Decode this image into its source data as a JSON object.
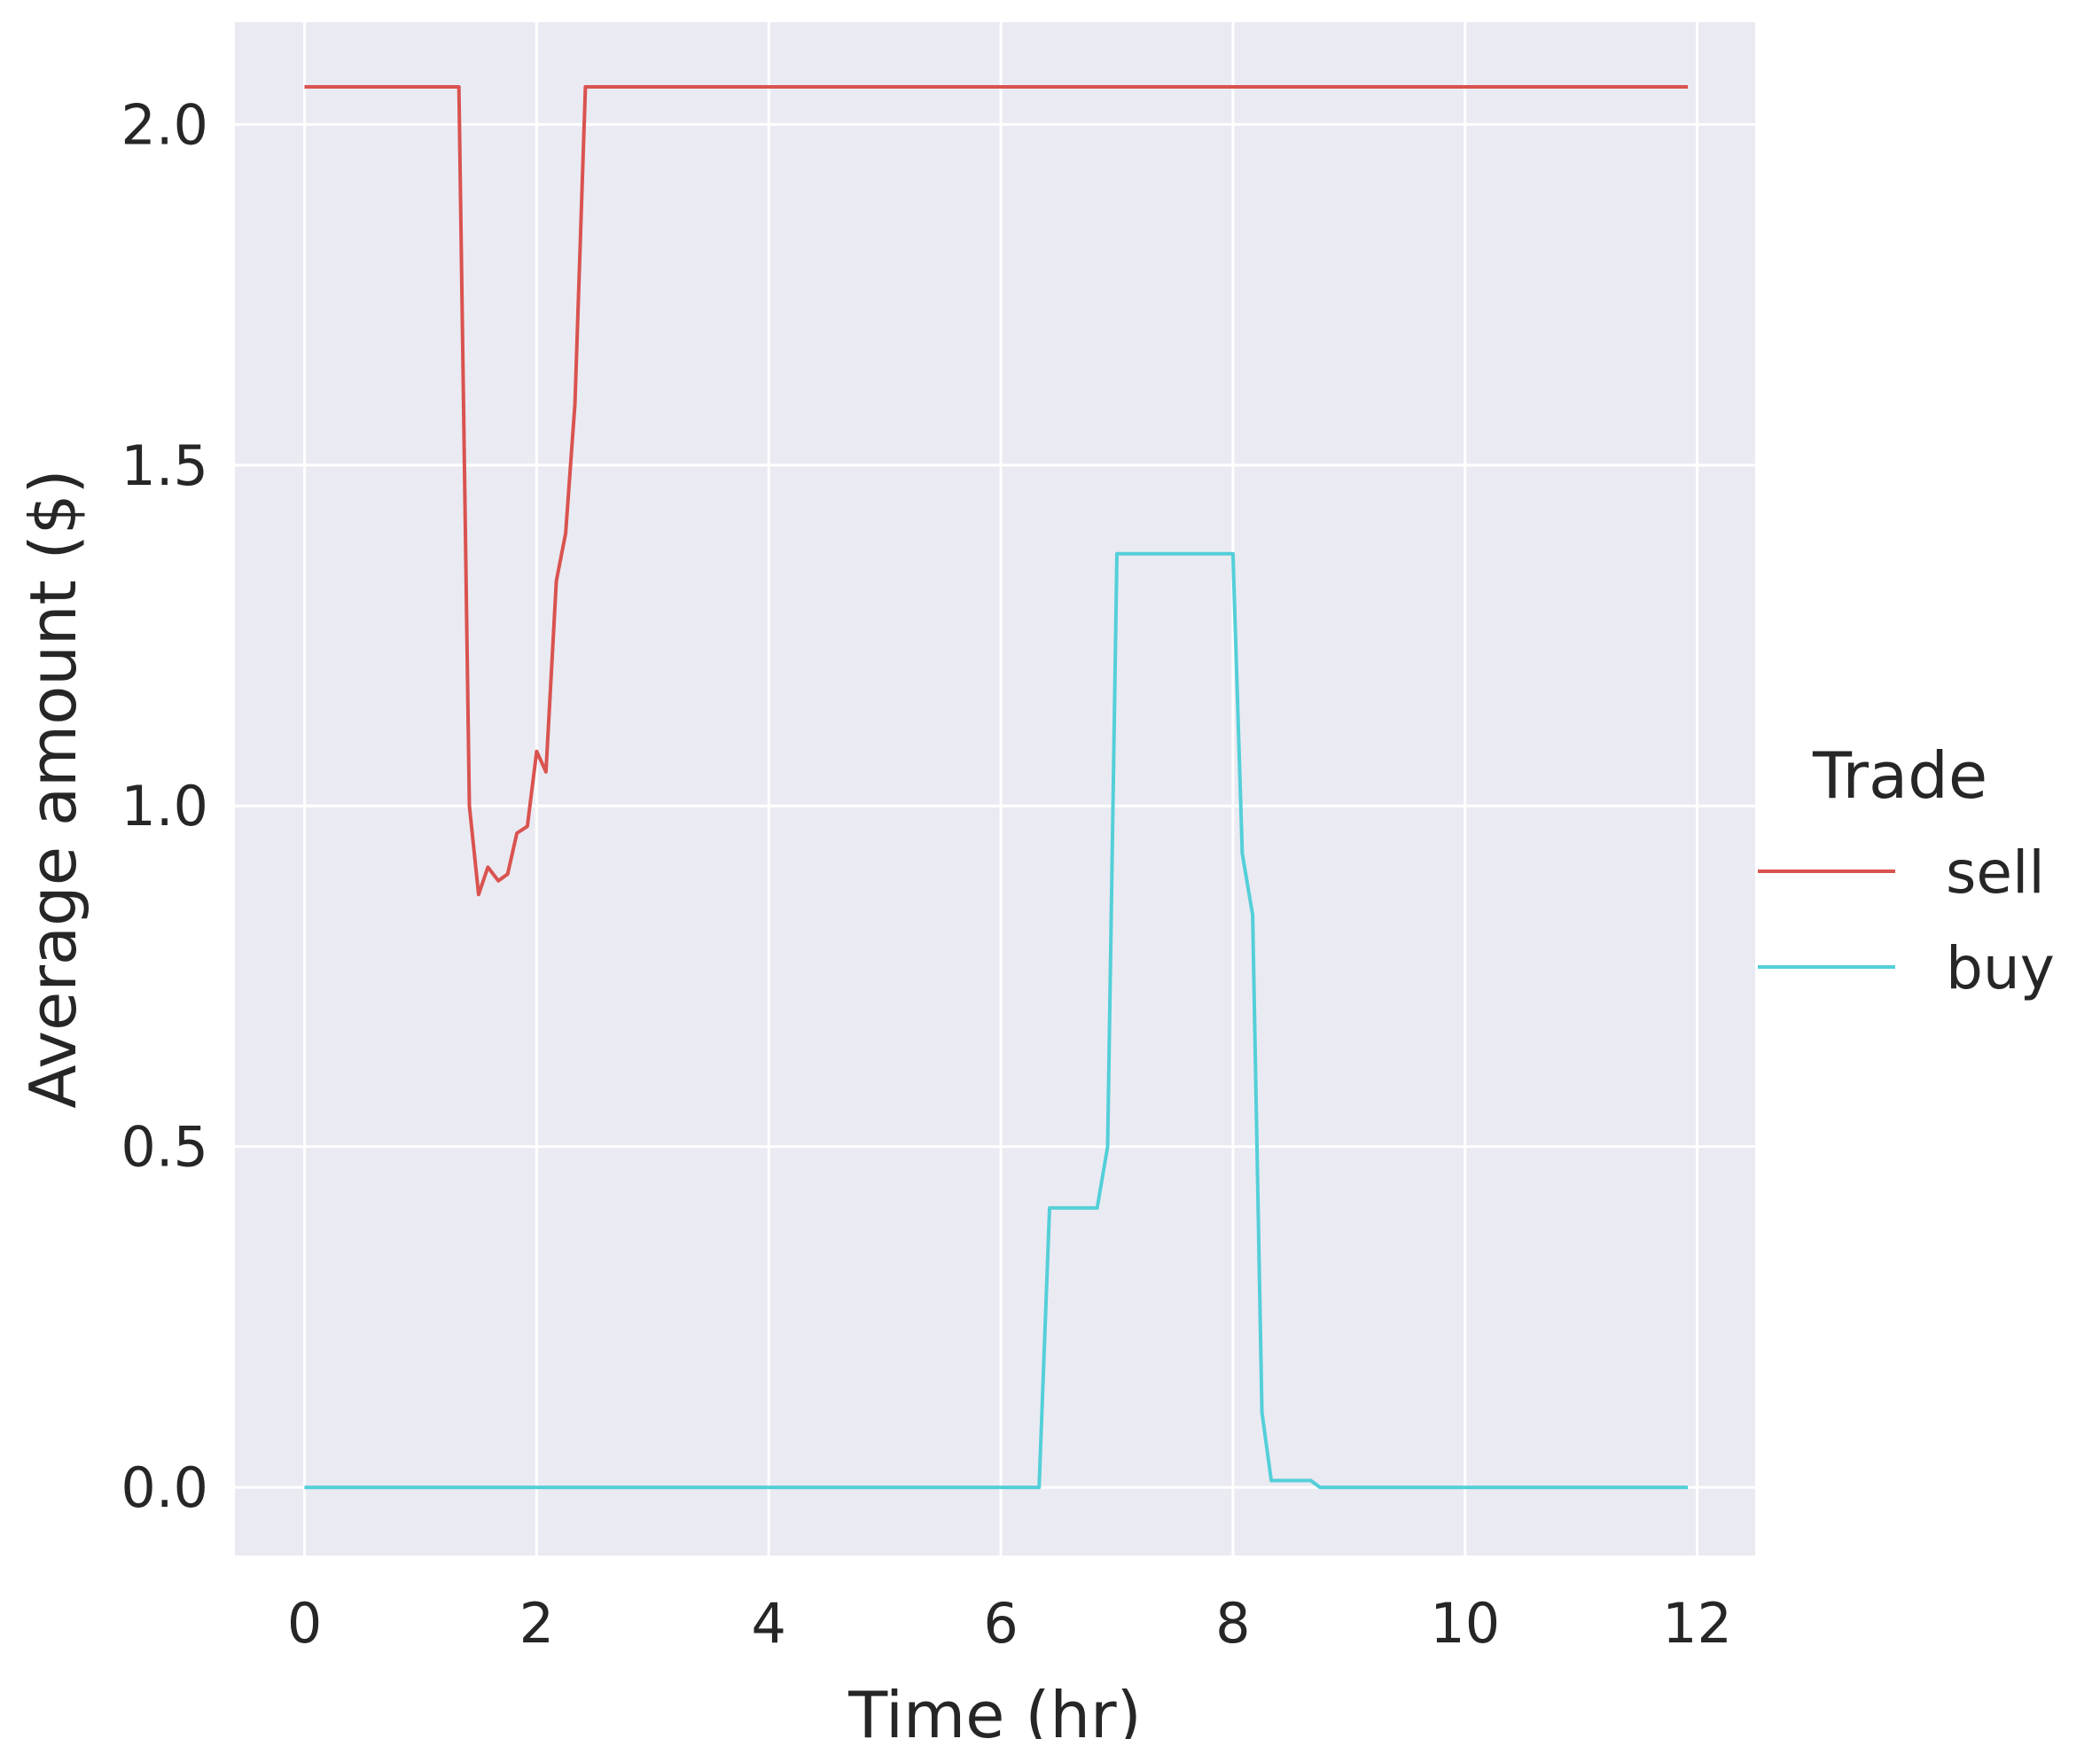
{
  "chart_data": {
    "type": "line",
    "title": "",
    "xlabel": "Time (hr)",
    "ylabel": "Average amount ($)",
    "xlim": [
      -0.6,
      12.5
    ],
    "ylim": [
      -0.1,
      2.15
    ],
    "xticks": [
      0,
      2,
      4,
      6,
      8,
      10,
      12
    ],
    "xtick_labels": [
      "0",
      "2",
      "4",
      "6",
      "8",
      "10",
      "12"
    ],
    "yticks": [
      0.0,
      0.5,
      1.0,
      1.5,
      2.0
    ],
    "ytick_labels": [
      "0.0",
      "0.5",
      "1.0",
      "1.5",
      "2.0"
    ],
    "grid": true,
    "legend": {
      "title": "Trade",
      "placement": "right"
    },
    "series": [
      {
        "name": "sell",
        "color": "#d9534f",
        "x": [
          0,
          1.33,
          1.42,
          1.5,
          1.58,
          1.67,
          1.75,
          1.83,
          1.92,
          2.0,
          2.08,
          2.17,
          2.25,
          2.33,
          2.42,
          2.5,
          11.92
        ],
        "y": [
          2.055,
          2.055,
          1.0,
          0.87,
          0.91,
          0.89,
          0.9,
          0.96,
          0.97,
          1.08,
          1.05,
          1.33,
          1.4,
          1.59,
          2.055,
          2.055,
          2.055
        ]
      },
      {
        "name": "buy",
        "color": "#54cfd8",
        "x": [
          0,
          6.33,
          6.42,
          6.5,
          6.58,
          6.67,
          6.75,
          6.83,
          6.92,
          7.0,
          7.08,
          8.0,
          8.08,
          8.17,
          8.25,
          8.33,
          8.67,
          8.75,
          11.92
        ],
        "y": [
          0.0,
          0.0,
          0.41,
          0.41,
          0.41,
          0.41,
          0.41,
          0.41,
          0.5,
          1.37,
          1.37,
          1.37,
          0.93,
          0.84,
          0.11,
          0.01,
          0.01,
          0.0,
          0.0
        ]
      }
    ]
  }
}
